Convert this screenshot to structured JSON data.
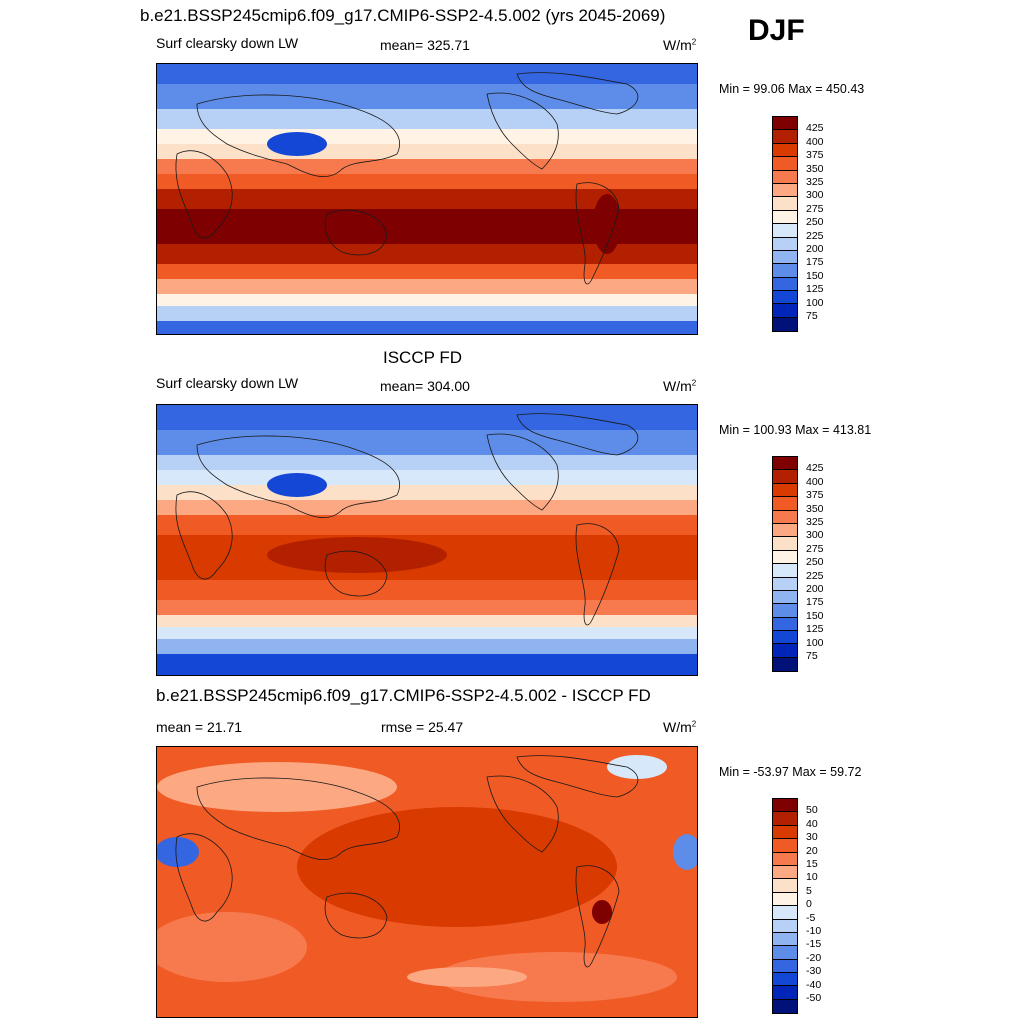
{
  "header": {
    "model_title": "b.e21.BSSP245cmip6.f09_g17.CMIP6-SSP2-4.5.002 (yrs 2045-2069)",
    "season": "DJF"
  },
  "panels": [
    {
      "id": "model",
      "title": "",
      "left_label": "Surf clearsky down LW",
      "center_label": "mean= 325.71",
      "unit": "W/m",
      "unit_sup": "2",
      "minmax": "Min =  99.06 Max = 450.43"
    },
    {
      "id": "obs",
      "title": "ISCCP FD",
      "left_label": "Surf clearsky down LW",
      "center_label": "mean= 304.00",
      "unit": "W/m",
      "unit_sup": "2",
      "minmax": "Min = 100.93 Max = 413.81"
    },
    {
      "id": "diff",
      "title": "b.e21.BSSP245cmip6.f09_g17.CMIP6-SSP2-4.5.002 - ISCCP FD",
      "left_label": "mean =  21.71",
      "center_label": "rmse =  25.47",
      "unit": "W/m",
      "unit_sup": "2",
      "minmax": "Min = -53.97 Max =  59.72"
    }
  ],
  "chart_data": [
    {
      "type": "heatmap",
      "title": "b.e21.BSSP245cmip6.f09_g17.CMIP6-SSP2-4.5.002 (yrs 2045-2069)",
      "variable": "Surf clearsky down LW",
      "units": "W/m2",
      "mean": 325.71,
      "min": 99.06,
      "max": 450.43,
      "colorbar_levels": [
        75,
        100,
        125,
        150,
        175,
        200,
        225,
        250,
        275,
        300,
        325,
        350,
        375,
        400,
        425
      ],
      "colorbar_labels": [
        "425",
        "400",
        "375",
        "350",
        "325",
        "300",
        "275",
        "250",
        "225",
        "200",
        "175",
        "150",
        "125",
        "100",
        "75"
      ],
      "colors": [
        "#7f0000",
        "#b32000",
        "#d93a00",
        "#f05a24",
        "#f77a4e",
        "#fca882",
        "#fde0c8",
        "#fff3e6",
        "#d7e8fb",
        "#b7d1f6",
        "#8fb4f0",
        "#5d8de8",
        "#3366e0",
        "#1447d6",
        "#0025b8",
        "#00127a"
      ]
    },
    {
      "type": "heatmap",
      "title": "ISCCP FD",
      "variable": "Surf clearsky down LW",
      "units": "W/m2",
      "mean": 304.0,
      "min": 100.93,
      "max": 413.81,
      "colorbar_levels": [
        75,
        100,
        125,
        150,
        175,
        200,
        225,
        250,
        275,
        300,
        325,
        350,
        375,
        400,
        425
      ],
      "colorbar_labels": [
        "425",
        "400",
        "375",
        "350",
        "325",
        "300",
        "275",
        "250",
        "225",
        "200",
        "175",
        "150",
        "125",
        "100",
        "75"
      ],
      "colors": [
        "#7f0000",
        "#b32000",
        "#d93a00",
        "#f05a24",
        "#f77a4e",
        "#fca882",
        "#fde0c8",
        "#fff3e6",
        "#d7e8fb",
        "#b7d1f6",
        "#8fb4f0",
        "#5d8de8",
        "#3366e0",
        "#1447d6",
        "#0025b8",
        "#00127a"
      ]
    },
    {
      "type": "heatmap",
      "title": "b.e21.BSSP245cmip6.f09_g17.CMIP6-SSP2-4.5.002 - ISCCP FD",
      "units": "W/m2",
      "mean": 21.71,
      "rmse": 25.47,
      "min": -53.97,
      "max": 59.72,
      "colorbar_levels": [
        -50,
        -40,
        -30,
        -20,
        -15,
        -10,
        -5,
        0,
        5,
        10,
        15,
        20,
        30,
        40,
        50
      ],
      "colorbar_labels": [
        "50",
        "40",
        "30",
        "20",
        "15",
        "10",
        "5",
        "0",
        "-5",
        "-10",
        "-15",
        "-20",
        "-30",
        "-40",
        "-50"
      ],
      "colors": [
        "#7f0000",
        "#b32000",
        "#d93a00",
        "#f05a24",
        "#f77a4e",
        "#fca882",
        "#fde0c8",
        "#fff3e6",
        "#d7e8fb",
        "#b7d1f6",
        "#8fb4f0",
        "#5d8de8",
        "#3366e0",
        "#1447d6",
        "#0025b8",
        "#00127a"
      ]
    }
  ]
}
